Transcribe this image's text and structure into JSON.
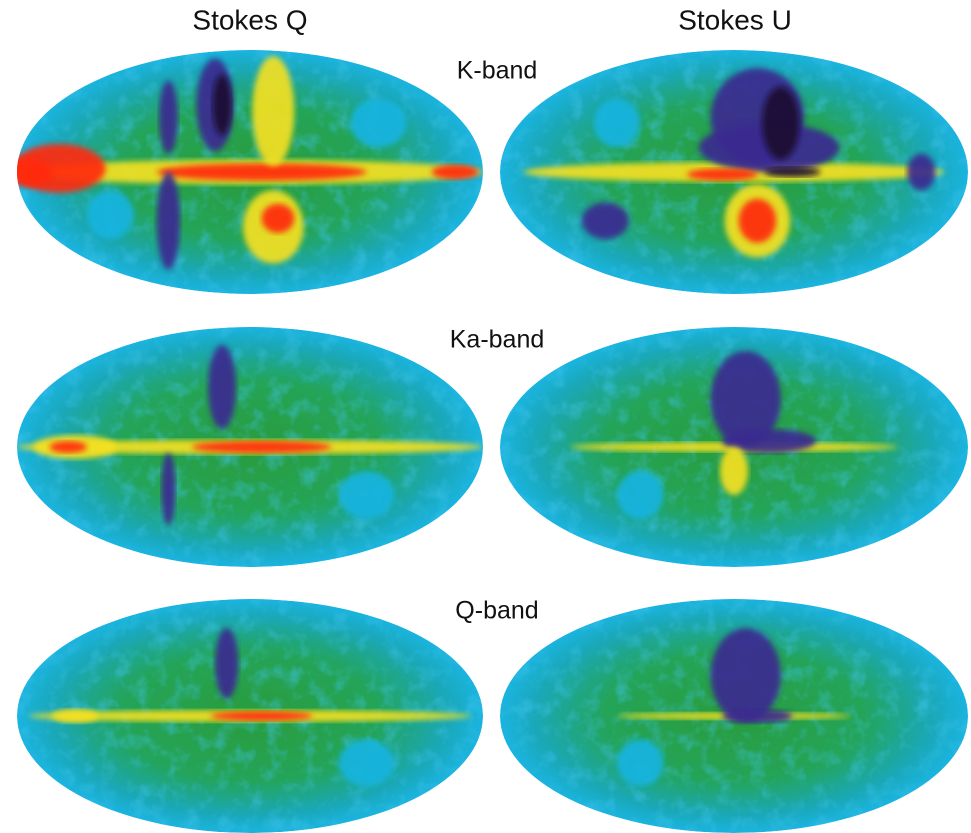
{
  "column_titles": [
    "Stokes Q",
    "Stokes U"
  ],
  "row_labels": [
    "K-band",
    "Ka-band",
    "Q-band"
  ]
}
